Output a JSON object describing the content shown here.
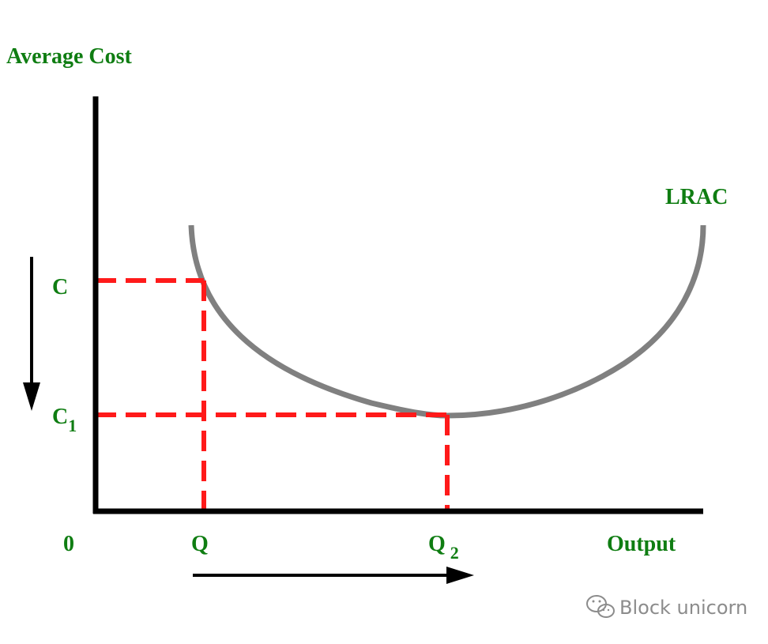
{
  "colors": {
    "label_green": "#0f7d12",
    "curve_gray": "#808080",
    "guide_red": "#ff1a1a",
    "axis_black": "#000000",
    "watermark_gray": "#8c8c8c"
  },
  "labels": {
    "y_axis_title": "Average Cost",
    "x_axis_title": "Output",
    "origin": "0",
    "curve": "LRAC",
    "cost_high": "C",
    "cost_low_base": "C",
    "cost_low_sub": "1",
    "output_low": "Q",
    "output_high_base": "Q",
    "output_high_sub": "2"
  },
  "arrows": {
    "cost_direction": "down",
    "output_direction": "right"
  },
  "watermark": {
    "text": "Block unicorn",
    "icon": "wechat-icon"
  }
}
